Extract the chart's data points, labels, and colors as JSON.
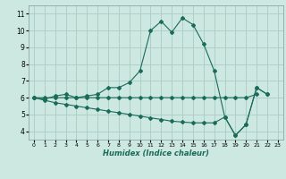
{
  "xlabel": "Humidex (Indice chaleur)",
  "bg_color": "#cce8e0",
  "grid_color": "#aaccc4",
  "line_color": "#1a6b5a",
  "xlim": [
    -0.5,
    23.5
  ],
  "ylim": [
    3.5,
    11.5
  ],
  "xticks": [
    0,
    1,
    2,
    3,
    4,
    5,
    6,
    7,
    8,
    9,
    10,
    11,
    12,
    13,
    14,
    15,
    16,
    17,
    18,
    19,
    20,
    21,
    22,
    23
  ],
  "yticks": [
    4,
    5,
    6,
    7,
    8,
    9,
    10,
    11
  ],
  "line1_x": [
    0,
    1,
    2,
    3,
    4,
    5,
    6,
    7,
    8,
    9,
    10,
    11,
    12,
    13,
    14,
    15,
    16,
    17,
    18,
    19,
    20,
    21,
    22
  ],
  "line1_y": [
    6.0,
    5.9,
    6.1,
    6.2,
    6.0,
    6.1,
    6.2,
    6.6,
    6.6,
    6.9,
    7.6,
    10.0,
    10.55,
    9.9,
    10.75,
    10.35,
    9.2,
    7.6,
    4.85,
    3.75,
    4.4,
    6.6,
    6.2
  ],
  "line2_x": [
    0,
    1,
    2,
    3,
    4,
    5,
    6,
    7,
    8,
    9,
    10,
    11,
    12,
    13,
    14,
    15,
    16,
    17,
    18,
    19,
    20,
    21
  ],
  "line2_y": [
    6.0,
    6.0,
    6.0,
    6.0,
    6.0,
    6.0,
    6.0,
    6.0,
    6.0,
    6.0,
    6.0,
    6.0,
    6.0,
    6.0,
    6.0,
    6.0,
    6.0,
    6.0,
    6.0,
    6.0,
    6.0,
    6.2
  ],
  "line3_x": [
    0,
    1,
    2,
    3,
    4,
    5,
    6,
    7,
    8,
    9,
    10,
    11,
    12,
    13,
    14,
    15,
    16,
    17,
    18,
    19,
    20,
    21,
    22
  ],
  "line3_y": [
    6.0,
    5.85,
    5.7,
    5.6,
    5.5,
    5.4,
    5.3,
    5.2,
    5.1,
    5.0,
    4.9,
    4.8,
    4.7,
    4.6,
    4.55,
    4.5,
    4.5,
    4.5,
    4.85,
    3.75,
    4.4,
    6.6,
    6.2
  ]
}
